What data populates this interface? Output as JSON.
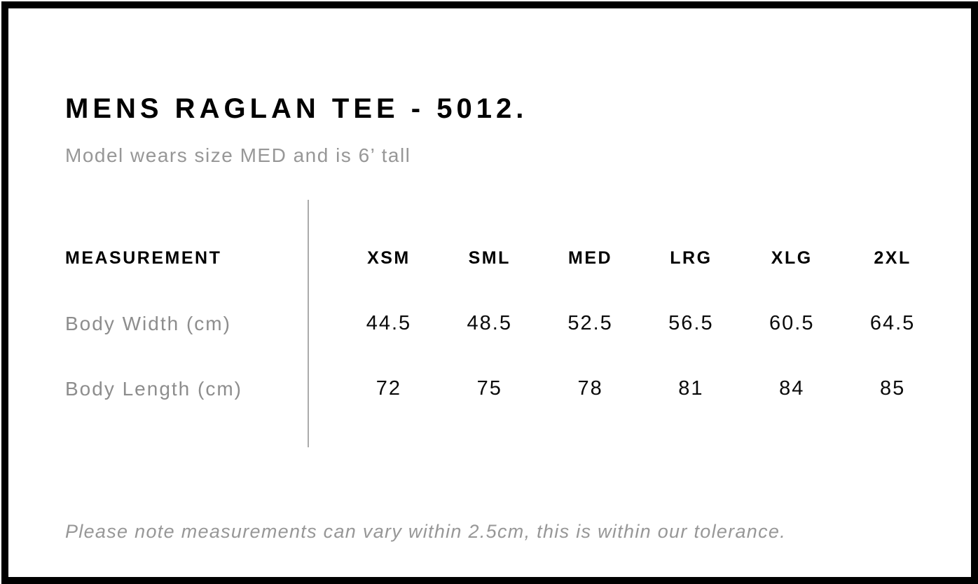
{
  "header": {
    "title": "MENS RAGLAN TEE - 5012.",
    "subtitle": "Model wears size MED and is 6’ tall"
  },
  "table": {
    "measurement_label": "MEASUREMENT",
    "sizes": [
      "XSM",
      "SML",
      "MED",
      "LRG",
      "XLG",
      "2XL"
    ],
    "rows": [
      {
        "label": "Body Width (cm)",
        "values": [
          "44.5",
          "48.5",
          "52.5",
          "56.5",
          "60.5",
          "64.5"
        ]
      },
      {
        "label": "Body Length (cm)",
        "values": [
          "72",
          "75",
          "78",
          "81",
          "84",
          "85"
        ]
      }
    ]
  },
  "footer": {
    "note": "Please note measurements can vary within 2.5cm, this is within our tolerance."
  },
  "colors": {
    "text_primary": "#000000",
    "text_muted": "#979797",
    "row_label": "#8d8d8d",
    "divider": "#ababab",
    "frame_border": "#000000"
  }
}
